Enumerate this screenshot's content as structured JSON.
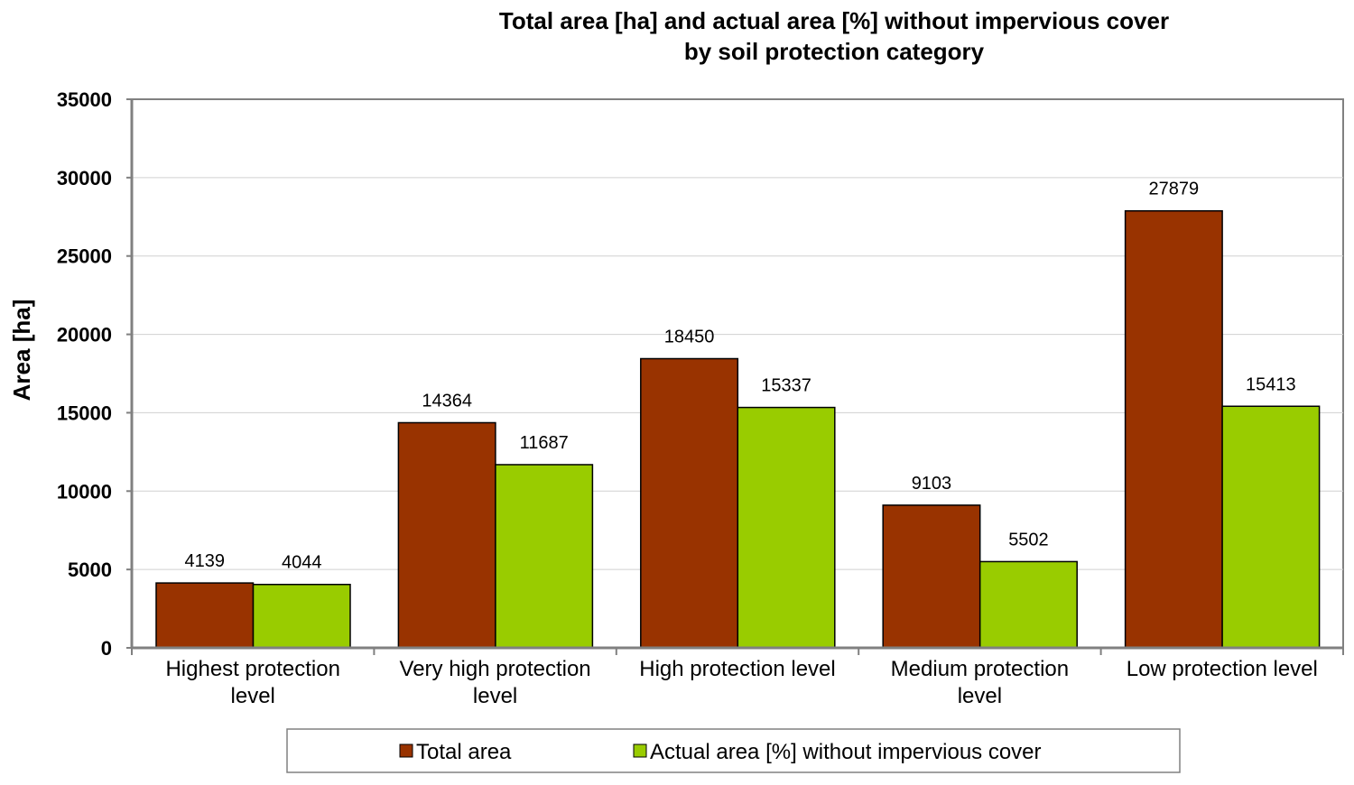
{
  "chart_data": {
    "type": "bar",
    "title": [
      "Total area [ha] and actual area [%] without impervious cover",
      "by soil protection category"
    ],
    "xlabel": "",
    "ylabel": "Area [ha]",
    "ylim": [
      0,
      35000
    ],
    "yticks": [
      0,
      5000,
      10000,
      15000,
      20000,
      25000,
      30000,
      35000
    ],
    "grid": true,
    "legend_position": "bottom",
    "categories": [
      [
        "Highest protection",
        "level"
      ],
      [
        "Very high protection",
        "level"
      ],
      [
        "High protection level"
      ],
      [
        "Medium protection",
        "level"
      ],
      [
        "Low protection level"
      ]
    ],
    "series": [
      {
        "name": "Total area",
        "color": "#993300",
        "values": [
          4139,
          14364,
          18450,
          9103,
          27879
        ]
      },
      {
        "name": "Actual area [%] without impervious cover",
        "color": "#99cc00",
        "values": [
          4044,
          11687,
          15337,
          5502,
          15413
        ]
      }
    ]
  }
}
